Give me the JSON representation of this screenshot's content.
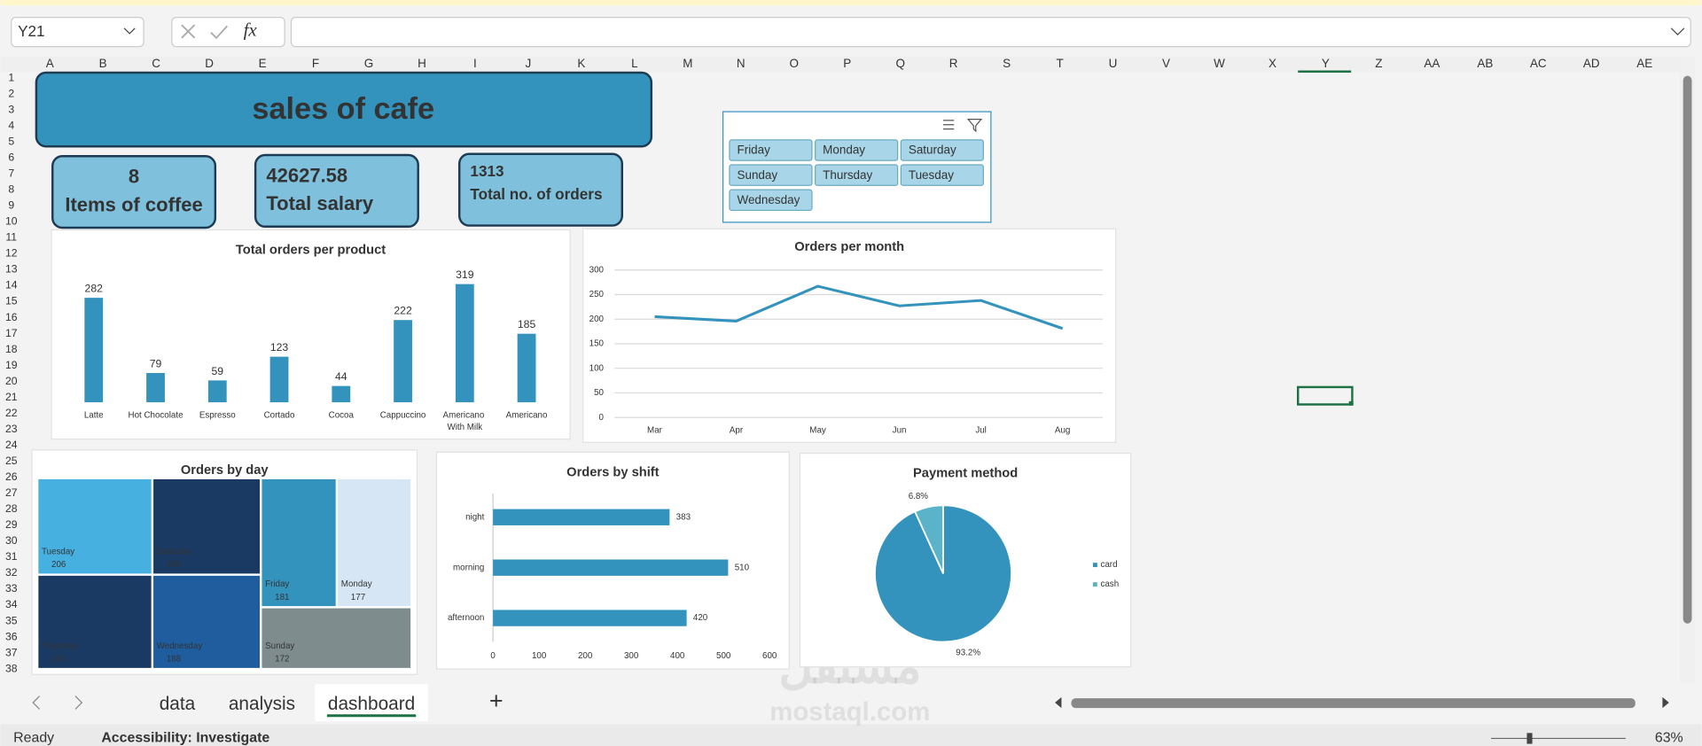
{
  "ui": {
    "name_box": "Y21",
    "fx": "fx",
    "columns": [
      "A",
      "B",
      "C",
      "D",
      "E",
      "F",
      "G",
      "H",
      "I",
      "J",
      "K",
      "L",
      "M",
      "N",
      "O",
      "P",
      "Q",
      "R",
      "S",
      "T",
      "U",
      "V",
      "W",
      "X",
      "Y",
      "Z",
      "AA",
      "AB",
      "AC",
      "AD",
      "AE"
    ],
    "rows": [
      1,
      2,
      3,
      4,
      5,
      6,
      7,
      8,
      9,
      10,
      11,
      12,
      13,
      14,
      15,
      16,
      17,
      18,
      19,
      20,
      21,
      22,
      23,
      24,
      25,
      26,
      27,
      28,
      29,
      30,
      31,
      32,
      33,
      34,
      35,
      36,
      37,
      38
    ],
    "sheets": [
      "data",
      "analysis",
      "dashboard"
    ],
    "add_sheet": "+",
    "status": "Ready",
    "accessibility": "Accessibility: Investigate",
    "zoom": "63%",
    "watermark": [
      "مستقل",
      "mostaql.com"
    ]
  },
  "dashboard": {
    "title": "sales of cafe",
    "kpis": [
      {
        "value": 8,
        "label": "Items of coffee"
      },
      {
        "value": 42627.58,
        "label": "Total salary"
      },
      {
        "value": 1313,
        "label": "Total no. of orders"
      }
    ],
    "slicer": [
      "Friday",
      "Monday",
      "Saturday",
      "Sunday",
      "Thursday",
      "Tuesday",
      "Wednesday"
    ]
  },
  "chart_data": [
    {
      "type": "bar",
      "title": "Total orders per product",
      "color": "#3393bd",
      "categories": [
        "Latte",
        "Hot Chocolate",
        "Espresso",
        "Cortado",
        "Cocoa",
        "Cappuccino",
        "Americano With Milk",
        "Americano"
      ],
      "values": [
        282,
        79,
        59,
        123,
        44,
        222,
        319,
        185
      ]
    },
    {
      "type": "line",
      "title": "Orders per month",
      "color": "#3393bd",
      "grid": true,
      "categories": [
        "Mar",
        "Apr",
        "May",
        "Jun",
        "Jul",
        "Aug"
      ],
      "values": [
        205,
        196,
        267,
        227,
        238,
        181
      ],
      "ylim": [
        0,
        300
      ],
      "yticks": [
        0,
        50,
        100,
        150,
        200,
        250,
        300
      ]
    },
    {
      "type": "treemap",
      "title": "Orders by day",
      "categories": [
        "Tuesday",
        "Saturday",
        "Thursday",
        "Wednesday",
        "Friday",
        "Monday",
        "Sunday"
      ],
      "values": [
        206,
        189,
        200,
        188,
        181,
        177,
        172
      ],
      "colors": [
        "#46b0e0",
        "#1b3a63",
        "#1b3a63",
        "#1f5d9e",
        "#3393bd",
        "#d6e6f4",
        "#7f8c8e"
      ]
    },
    {
      "type": "barh",
      "title": "Orders by shift",
      "color": "#3393bd",
      "categories": [
        "night",
        "morning",
        "afternoon"
      ],
      "values": [
        383,
        510,
        420
      ],
      "xlim": [
        0,
        600
      ],
      "xticks": [
        0,
        100,
        200,
        300,
        400,
        500,
        600
      ]
    },
    {
      "type": "pie",
      "title": "Payment method",
      "legend": "right",
      "categories": [
        "card",
        "cash"
      ],
      "values": [
        93.2,
        6.8
      ],
      "value_labels": [
        "93.2%",
        "6.8%"
      ],
      "colors": [
        "#3393bd",
        "#5ab3c9"
      ]
    }
  ]
}
